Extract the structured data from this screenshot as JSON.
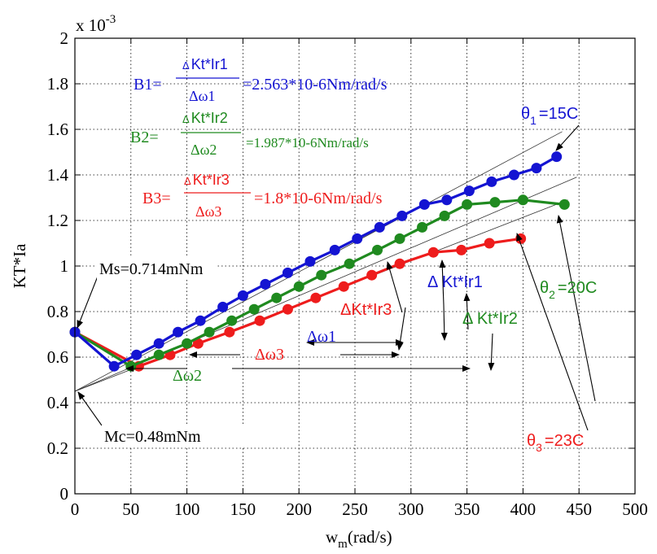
{
  "chart_data": {
    "type": "line",
    "xlabel": "w",
    "xlabel_sub": "m",
    "xlabel_unit": "(rad/s)",
    "ylabel": "KT*Ia",
    "exponent_label": "x 10",
    "exponent_power": "-3",
    "xlim": [
      0,
      500
    ],
    "ylim": [
      0,
      2
    ],
    "x_ticks": [
      0,
      50,
      100,
      150,
      200,
      250,
      300,
      350,
      400,
      450,
      500
    ],
    "y_ticks": [
      0,
      0.2,
      0.4,
      0.6,
      0.8,
      1,
      1.2,
      1.4,
      1.6,
      1.8,
      2
    ],
    "grid": true,
    "colors": {
      "s1": "#1414d2",
      "s2": "#1f8a1f",
      "s3": "#ee1c1c"
    },
    "series": [
      {
        "key": "s1",
        "x": [
          0,
          35,
          55,
          75,
          92,
          112,
          132,
          150,
          170,
          190,
          210,
          232,
          252,
          272,
          292,
          312,
          332,
          352,
          372,
          392,
          412,
          430
        ],
        "y": [
          0.71,
          0.56,
          0.61,
          0.66,
          0.71,
          0.76,
          0.82,
          0.87,
          0.92,
          0.97,
          1.02,
          1.07,
          1.12,
          1.17,
          1.22,
          1.27,
          1.29,
          1.33,
          1.37,
          1.4,
          1.43,
          1.48
        ]
      },
      {
        "key": "s2",
        "x": [
          0,
          50,
          75,
          100,
          120,
          140,
          160,
          180,
          200,
          220,
          245,
          270,
          290,
          310,
          330,
          350,
          375,
          400,
          437
        ],
        "y": [
          0.71,
          0.56,
          0.61,
          0.66,
          0.71,
          0.76,
          0.81,
          0.86,
          0.91,
          0.96,
          1.01,
          1.07,
          1.12,
          1.17,
          1.22,
          1.27,
          1.28,
          1.29,
          1.27
        ]
      },
      {
        "key": "s3",
        "x": [
          0,
          57,
          85,
          110,
          138,
          165,
          190,
          215,
          240,
          265,
          290,
          320,
          345,
          370,
          398
        ],
        "y": [
          0.71,
          0.56,
          0.61,
          0.66,
          0.71,
          0.76,
          0.81,
          0.86,
          0.91,
          0.96,
          1.01,
          1.06,
          1.07,
          1.1,
          1.12
        ]
      }
    ],
    "tangents": [
      {
        "x": [
          0,
          435
        ],
        "y": [
          0.45,
          1.59
        ]
      },
      {
        "x": [
          0,
          448
        ],
        "y": [
          0.45,
          1.39
        ]
      },
      {
        "x": [
          0,
          440
        ],
        "y": [
          0.45,
          1.29
        ]
      }
    ],
    "annotations": {
      "b1_label": "B1=",
      "b1_num": "Kt*Ir1",
      "b1_den": "Δω1",
      "b1_value": "=2.563*10-6Nm/rad/s",
      "b2_label": "B2=",
      "b2_num": "Kt*Ir2",
      "b2_den": "Δω2",
      "b2_value": "=1.987*10-6Nm/rad/s",
      "b3_label": "B3=",
      "b3_num": "Kt*Ir3",
      "b3_den": "Δω3",
      "b3_value": "=1.8*10-6Nm/rad/s",
      "delta": "Δ",
      "theta1": "θ",
      "theta1_sub": "1",
      "theta1_val": "=15C",
      "theta2": "θ",
      "theta2_sub": "2",
      "theta2_val": "=20C",
      "theta3": "θ",
      "theta3_sub": "3",
      "theta3_val": "=23C",
      "ms": "Ms=0.714mNm",
      "mc": "Mc=0.48mNm",
      "dkt1": "Δ Kt*Ir1",
      "dkt2": "Δ Kt*Ir2",
      "dkt3": "ΔKt*Ir3",
      "dw1": "Δω1",
      "dw2": "Δω2",
      "dw3": "Δω3"
    }
  }
}
